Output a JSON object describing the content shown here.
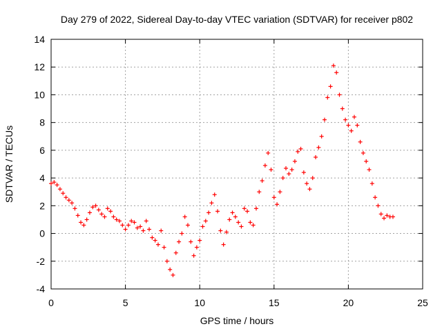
{
  "chart_data": {
    "type": "scatter",
    "title": "Day 279 of 2022, Sidereal Day-to-day VTEC variation (SDTVAR) for receiver p802",
    "xlabel": "GPS time / hours",
    "ylabel": "SDTVAR / TECUs",
    "xlim": [
      0,
      25
    ],
    "ylim": [
      -4,
      14
    ],
    "xticks": [
      0,
      5,
      10,
      15,
      20,
      25
    ],
    "yticks": [
      -4,
      -2,
      0,
      2,
      4,
      6,
      8,
      10,
      12,
      14
    ],
    "xtick_labels": [
      "0",
      "5",
      "10",
      "15",
      "20",
      "25"
    ],
    "ytick_labels": [
      "-4",
      "-2",
      "0",
      "2",
      "4",
      "6",
      "8",
      "10",
      "12",
      "14"
    ],
    "grid": true,
    "marker": "+",
    "color": "#ff0000",
    "series": [
      {
        "name": "SDTVAR",
        "x": [
          0.0,
          0.2,
          0.4,
          0.6,
          0.8,
          1.0,
          1.2,
          1.4,
          1.6,
          1.8,
          2.0,
          2.2,
          2.4,
          2.6,
          2.8,
          3.0,
          3.2,
          3.4,
          3.6,
          3.8,
          4.0,
          4.2,
          4.4,
          4.6,
          4.8,
          5.0,
          5.2,
          5.4,
          5.6,
          5.8,
          6.0,
          6.2,
          6.4,
          6.6,
          6.8,
          7.0,
          7.2,
          7.4,
          7.6,
          7.8,
          8.0,
          8.2,
          8.4,
          8.6,
          8.8,
          9.0,
          9.2,
          9.4,
          9.6,
          9.8,
          10.0,
          10.2,
          10.4,
          10.6,
          10.8,
          11.0,
          11.2,
          11.4,
          11.6,
          11.8,
          12.0,
          12.2,
          12.4,
          12.6,
          12.8,
          13.0,
          13.2,
          13.4,
          13.6,
          13.8,
          14.0,
          14.2,
          14.4,
          14.6,
          14.8,
          15.0,
          15.2,
          15.4,
          15.6,
          15.8,
          16.0,
          16.2,
          16.4,
          16.6,
          16.8,
          17.0,
          17.2,
          17.4,
          17.6,
          17.8,
          18.0,
          18.2,
          18.4,
          18.6,
          18.8,
          19.0,
          19.2,
          19.4,
          19.6,
          19.8,
          20.0,
          20.2,
          20.4,
          20.6,
          20.8,
          21.0,
          21.2,
          21.4,
          21.6,
          21.8,
          22.0,
          22.2,
          22.4,
          22.6,
          22.8,
          23.0
        ],
        "y": [
          3.6,
          3.7,
          3.5,
          3.2,
          2.9,
          2.6,
          2.4,
          2.2,
          1.8,
          1.3,
          0.8,
          0.6,
          1.0,
          1.5,
          1.9,
          2.0,
          1.7,
          1.4,
          1.2,
          1.8,
          1.6,
          1.2,
          1.0,
          0.9,
          0.6,
          0.3,
          0.6,
          0.9,
          0.8,
          0.4,
          0.5,
          0.2,
          0.9,
          0.3,
          -0.3,
          -0.5,
          -0.8,
          0.2,
          -1.0,
          -2.0,
          -2.6,
          -3.0,
          -1.4,
          -0.6,
          0.0,
          1.2,
          0.6,
          -0.6,
          -1.6,
          -1.0,
          -0.5,
          0.5,
          0.9,
          1.5,
          2.2,
          2.8,
          1.6,
          0.2,
          -0.8,
          0.1,
          1.0,
          1.5,
          1.2,
          0.8,
          0.5,
          1.8,
          1.6,
          0.8,
          0.6,
          1.8,
          3.0,
          3.8,
          4.9,
          5.8,
          4.6,
          2.6,
          2.1,
          3.0,
          4.0,
          4.7,
          4.3,
          4.6,
          5.2,
          5.9,
          6.1,
          4.4,
          3.6,
          3.2,
          4.0,
          5.5,
          6.2,
          7.0,
          8.2,
          9.8,
          10.6,
          12.1,
          11.6,
          10.0,
          9.0,
          8.2,
          7.8,
          7.4,
          8.4,
          7.8,
          6.6,
          5.8,
          5.2,
          4.6,
          3.6,
          2.6,
          2.0,
          1.4,
          1.1,
          1.3,
          1.2,
          1.2
        ]
      }
    ]
  }
}
